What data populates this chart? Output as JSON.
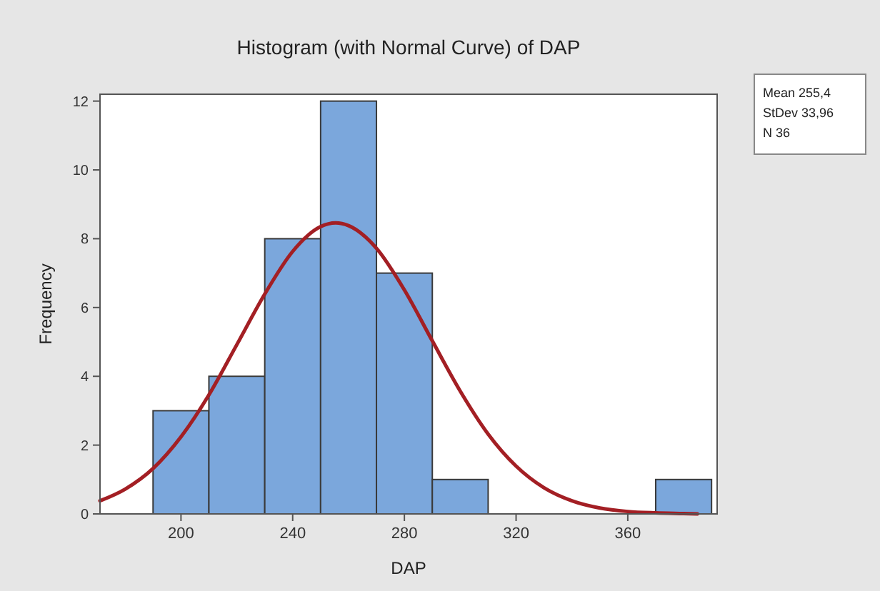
{
  "chart_data": {
    "type": "histogram",
    "title": "Histogram (with Normal Curve) of DAP",
    "xlabel": "DAP",
    "ylabel": "Frequency",
    "bins": [
      190,
      210,
      230,
      250,
      270,
      290,
      310,
      330,
      350,
      370,
      390
    ],
    "series": [
      {
        "color": "#7ba7dc",
        "values": [
          3,
          4,
          8,
          12,
          7,
          1,
          0,
          0,
          0,
          1
        ]
      },
      {
        "type": "line",
        "color": "#a31f24",
        "x": [
          171,
          180,
          190,
          200,
          210,
          220,
          230,
          240,
          250,
          255.4,
          260,
          270,
          280,
          290,
          300,
          310,
          320,
          330,
          340,
          350,
          360,
          370,
          380,
          385
        ],
        "values": [
          0.38,
          0.72,
          1.32,
          2.24,
          3.46,
          4.92,
          6.39,
          7.63,
          8.35,
          8.46,
          8.38,
          7.72,
          6.51,
          5.03,
          3.57,
          2.32,
          1.39,
          0.76,
          0.38,
          0.17,
          0.07,
          0.03,
          0.01,
          0
        ]
      }
    ],
    "xlim": [
      171,
      392
    ],
    "xticks": [
      200,
      240,
      280,
      320,
      360
    ],
    "ylim": [
      0,
      12.2
    ],
    "yticks": [
      0,
      2,
      4,
      6,
      8,
      10,
      12
    ],
    "grid": false,
    "annotations": [
      "Mean 255,4",
      "StDev 33,96",
      "N 36"
    ]
  }
}
